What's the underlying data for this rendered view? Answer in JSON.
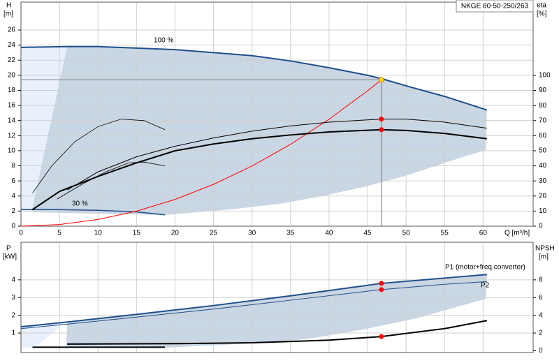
{
  "chart_data": [
    {
      "type": "line",
      "title": "NKGE 80-50-250/263",
      "xlabel": "Q [m³/h]",
      "ylabel": "H",
      "yunit": "[m]",
      "y2label": "eta",
      "y2unit": "[%]",
      "xlim": [
        0,
        66.5
      ],
      "xticks": [
        0,
        5,
        10,
        15,
        20,
        25,
        30,
        35,
        40,
        45,
        50,
        55,
        60
      ],
      "ylim": [
        0,
        29.7
      ],
      "yticks": [
        0,
        2,
        4,
        6,
        8,
        10,
        12,
        14,
        16,
        18,
        20,
        22,
        24,
        26
      ],
      "y2lim": [
        0,
        148.6
      ],
      "y2ticks": [
        0,
        10,
        20,
        30,
        40,
        50,
        60,
        70,
        80,
        90,
        100
      ],
      "grid": true,
      "series": [
        {
          "name": "100 %",
          "color": "#1f4e8c",
          "width": 2,
          "x": [
            0,
            6,
            10,
            15,
            20,
            25,
            30,
            35,
            40,
            45,
            47,
            50,
            55,
            60.5
          ],
          "values": [
            23.7,
            23.8,
            23.8,
            23.6,
            23.4,
            23.0,
            22.6,
            21.9,
            21.0,
            20.0,
            19.5,
            18.6,
            17.2,
            15.4
          ]
        },
        {
          "name": "30 %",
          "color": "#1f4e8c",
          "width": 1.5,
          "x": [
            0,
            5,
            10,
            15,
            18.7
          ],
          "values": [
            2.2,
            2.2,
            2.1,
            1.9,
            1.5
          ]
        },
        {
          "color": "#ff0000",
          "width": 1,
          "x": [
            0,
            5,
            10,
            15,
            20,
            25,
            30,
            35,
            40,
            45,
            46.8
          ],
          "values": [
            0,
            0.22,
            0.89,
            1.99,
            3.54,
            5.54,
            7.97,
            10.85,
            14.17,
            17.94,
            19.4
          ]
        },
        {
          "color": "#000000",
          "width": 2,
          "axis": "y2",
          "x": [
            1.5,
            5,
            10,
            15,
            20,
            25,
            30,
            35,
            40,
            46.8,
            50,
            55,
            60.5
          ],
          "values": [
            11,
            23,
            33,
            42,
            50,
            54.5,
            58,
            60.5,
            62.5,
            64,
            63.5,
            61.5,
            58
          ]
        },
        {
          "color": "#000000",
          "width": 1,
          "axis": "y2",
          "x": [
            6,
            10,
            15,
            20,
            25,
            30,
            35,
            40,
            46.8,
            50,
            55,
            60.5
          ],
          "values": [
            24,
            36,
            46,
            53,
            58.5,
            63,
            66.5,
            69,
            71,
            71,
            69,
            65
          ]
        },
        {
          "color": "#000000",
          "width": 0.8,
          "axis": "y2",
          "x": [
            1.5,
            4,
            7,
            10,
            13,
            16,
            18.7
          ],
          "values": [
            22,
            40,
            56,
            66,
            71,
            70,
            64
          ]
        },
        {
          "color": "#000000",
          "width": 0.8,
          "axis": "y2",
          "x": [
            4.7,
            8,
            11,
            14,
            16,
            18.7
          ],
          "values": [
            18,
            28,
            36,
            42,
            42.5,
            40
          ]
        },
        {
          "color": "#ffd700",
          "marker": true,
          "guides": true,
          "x": [
            46.8
          ],
          "values": [
            19.4
          ]
        },
        {
          "color": "#ff0000",
          "marker": true,
          "axis": "y2",
          "x": [
            46.8,
            46.8
          ],
          "values": [
            71,
            64
          ]
        }
      ]
    },
    {
      "type": "line",
      "ylabel": "P",
      "yunit": "[kW]",
      "y2label": "NPSH",
      "y2unit": "[m]",
      "xlim": [
        0,
        66.5
      ],
      "xticks": [
        0,
        5,
        10,
        15,
        20,
        25,
        30,
        35,
        40,
        45,
        50,
        55,
        60
      ],
      "xtick_labels": false,
      "ylim": [
        -0.1,
        6.12
      ],
      "yticks": [
        1,
        2,
        3,
        4
      ],
      "y2lim": [
        -0.2,
        12.24
      ],
      "y2ticks": [
        0,
        2,
        4,
        6,
        8
      ],
      "grid": true,
      "series": [
        {
          "name": "P1 (motor+freq.converter)",
          "color": "#1f4e8c",
          "width": 2,
          "x": [
            0,
            6,
            15,
            25,
            35,
            46.8,
            55,
            60.5
          ],
          "values": [
            1.35,
            1.62,
            2.05,
            2.55,
            3.1,
            3.8,
            4.1,
            4.3
          ]
        },
        {
          "name": "P2",
          "color": "#1f4e8c",
          "width": 1,
          "x": [
            0,
            6,
            15,
            25,
            35,
            46.8,
            55,
            60.5
          ],
          "values": [
            1.25,
            1.5,
            1.9,
            2.35,
            2.85,
            3.45,
            3.75,
            3.9
          ]
        },
        {
          "color": "#000000",
          "width": 2,
          "axis": "y2",
          "x": [
            6,
            20,
            30,
            40,
            46.8,
            55,
            60.5
          ],
          "values": [
            0.75,
            0.8,
            0.9,
            1.2,
            1.6,
            2.5,
            3.4
          ]
        },
        {
          "color": "#000000",
          "width": 2,
          "x": [
            1.5,
            18.7
          ],
          "values": [
            0.2,
            0.2
          ]
        },
        {
          "color": "#ff0000",
          "marker": true,
          "x": [
            46.8,
            46.8
          ],
          "values": [
            3.8,
            3.45
          ]
        },
        {
          "color": "#ff0000",
          "marker": true,
          "axis": "y2",
          "x": [
            46.8
          ],
          "values": [
            1.6
          ]
        }
      ]
    }
  ]
}
